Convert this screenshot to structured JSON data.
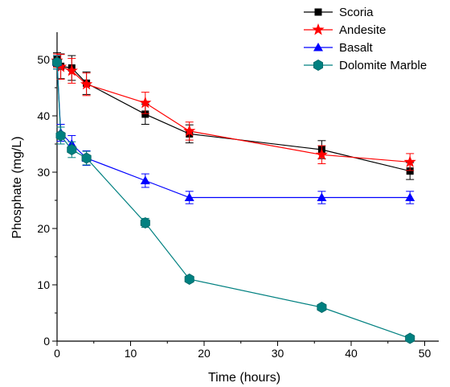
{
  "chart_data": {
    "type": "line",
    "title": "",
    "xlabel": "Time (hours)",
    "ylabel": "Phosphate (mg/L)",
    "xlim": [
      0,
      50
    ],
    "ylim": [
      0,
      55
    ],
    "xticks": [
      0,
      10,
      20,
      30,
      40,
      50
    ],
    "yticks": [
      0,
      10,
      20,
      30,
      40,
      50
    ],
    "grid": false,
    "legend_position": "top-right",
    "series": [
      {
        "name": "Scoria",
        "color": "#000000",
        "marker": "square",
        "x": [
          0,
          0.5,
          2,
          4,
          12,
          18,
          36,
          48
        ],
        "y": [
          50,
          48.8,
          48.5,
          45.8,
          40.3,
          36.8,
          34.0,
          30.2
        ],
        "err": [
          1.2,
          2.2,
          2.2,
          2.0,
          1.8,
          1.6,
          1.6,
          1.5
        ]
      },
      {
        "name": "Andesite",
        "color": "#ff0000",
        "marker": "star",
        "x": [
          0,
          0.5,
          2,
          4,
          12,
          18,
          36,
          48
        ],
        "y": [
          49.8,
          48.7,
          48.0,
          45.6,
          42.3,
          37.3,
          33.1,
          31.8
        ],
        "err": [
          1.2,
          2.2,
          2.2,
          2.0,
          1.9,
          1.6,
          1.6,
          1.5
        ]
      },
      {
        "name": "Basalt",
        "color": "#0000ff",
        "marker": "triangle",
        "x": [
          0,
          0.5,
          2,
          4,
          12,
          18,
          36,
          48
        ],
        "y": [
          49.5,
          37.0,
          35.0,
          32.5,
          28.5,
          25.5,
          25.5,
          25.5
        ],
        "err": [
          1.2,
          1.5,
          1.5,
          1.3,
          1.2,
          1.1,
          1.1,
          1.1
        ]
      },
      {
        "name": "Dolomite Marble",
        "color": "#008080",
        "marker": "hexagon",
        "x": [
          0,
          0.5,
          2,
          4,
          12,
          18,
          36,
          48
        ],
        "y": [
          49.5,
          36.5,
          34.0,
          32.5,
          21.0,
          11.0,
          6.0,
          0.5
        ],
        "err": [
          1.2,
          1.5,
          1.4,
          1.2,
          0.8,
          0.5,
          0.5,
          0.3
        ]
      }
    ]
  }
}
